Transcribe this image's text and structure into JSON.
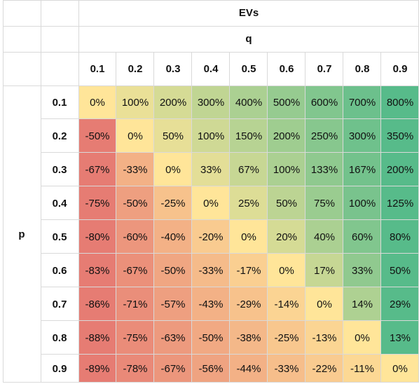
{
  "sheet": {
    "title": "EVs",
    "col_var": "q",
    "row_var": "p"
  },
  "chart_data": {
    "type": "heatmap",
    "title": "EVs",
    "xlabel": "q",
    "ylabel": "p",
    "x_labels": [
      "0.1",
      "0.2",
      "0.3",
      "0.4",
      "0.5",
      "0.6",
      "0.7",
      "0.8",
      "0.9"
    ],
    "y_labels": [
      "0.1",
      "0.2",
      "0.3",
      "0.4",
      "0.5",
      "0.6",
      "0.7",
      "0.8",
      "0.9"
    ],
    "cells": [
      [
        "0%",
        "100%",
        "200%",
        "300%",
        "400%",
        "500%",
        "600%",
        "700%",
        "800%"
      ],
      [
        "-50%",
        "0%",
        "50%",
        "100%",
        "150%",
        "200%",
        "250%",
        "300%",
        "350%"
      ],
      [
        "-67%",
        "-33%",
        "0%",
        "33%",
        "67%",
        "100%",
        "133%",
        "167%",
        "200%"
      ],
      [
        "-75%",
        "-50%",
        "-25%",
        "0%",
        "25%",
        "50%",
        "75%",
        "100%",
        "125%"
      ],
      [
        "-80%",
        "-60%",
        "-40%",
        "-20%",
        "0%",
        "20%",
        "40%",
        "60%",
        "80%"
      ],
      [
        "-83%",
        "-67%",
        "-50%",
        "-33%",
        "-17%",
        "0%",
        "17%",
        "33%",
        "50%"
      ],
      [
        "-86%",
        "-71%",
        "-57%",
        "-43%",
        "-29%",
        "-14%",
        "0%",
        "14%",
        "29%"
      ],
      [
        "-88%",
        "-75%",
        "-63%",
        "-50%",
        "-38%",
        "-25%",
        "-13%",
        "0%",
        "13%"
      ],
      [
        "-89%",
        "-78%",
        "-67%",
        "-56%",
        "-44%",
        "-33%",
        "-22%",
        "-11%",
        "0%"
      ]
    ],
    "values": [
      [
        0,
        100,
        200,
        300,
        400,
        500,
        600,
        700,
        800
      ],
      [
        -50,
        0,
        50,
        100,
        150,
        200,
        250,
        300,
        350
      ],
      [
        -67,
        -33,
        0,
        33,
        67,
        100,
        133,
        167,
        200
      ],
      [
        -75,
        -50,
        -25,
        0,
        25,
        50,
        75,
        100,
        125
      ],
      [
        -80,
        -60,
        -40,
        -20,
        0,
        20,
        40,
        60,
        80
      ],
      [
        -83,
        -67,
        -50,
        -33,
        -17,
        0,
        17,
        33,
        50
      ],
      [
        -86,
        -71,
        -57,
        -43,
        -29,
        -14,
        0,
        14,
        29
      ],
      [
        -88,
        -75,
        -63,
        -50,
        -38,
        -25,
        -13,
        0,
        13
      ],
      [
        -89,
        -78,
        -67,
        -56,
        -44,
        -33,
        -22,
        -11,
        0
      ]
    ],
    "color_scale": {
      "low_color": "#e67c73",
      "mid_color": "#ffe599",
      "high_color": "#57bb8a",
      "scale": "per-row gradient"
    },
    "grid": true
  },
  "colors": {
    "grid_line": "#d9d9d9",
    "text": "#111111"
  }
}
